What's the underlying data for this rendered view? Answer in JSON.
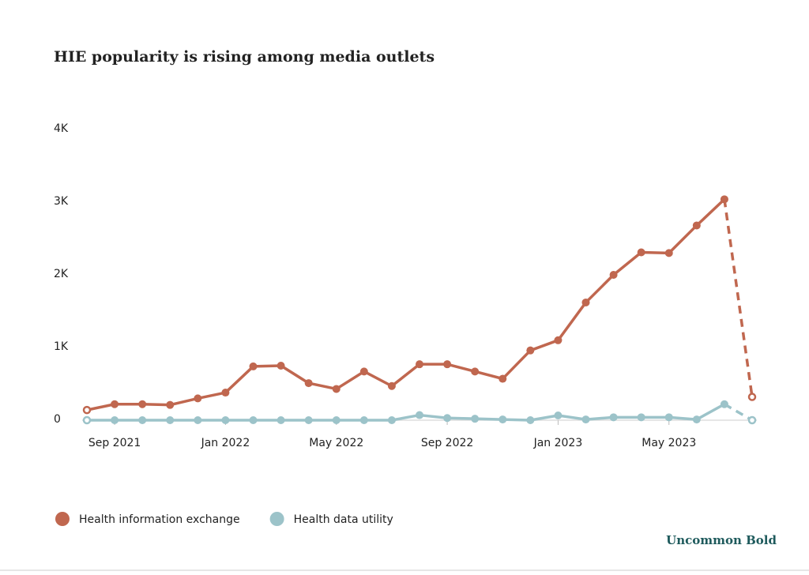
{
  "chart_data": {
    "type": "line",
    "title": "HIE popularity is rising among media outlets",
    "categories": [
      null,
      "Sep 2021",
      null,
      null,
      null,
      "Jan 2022",
      null,
      null,
      null,
      "May 2022",
      null,
      null,
      null,
      "Sep 2022",
      null,
      null,
      null,
      "Jan 2023",
      null,
      null,
      null,
      "May 2023",
      null,
      null,
      null
    ],
    "series": [
      {
        "name": "Health information exchange",
        "color": "#c0674f",
        "values": [
          140,
          220,
          220,
          210,
          300,
          380,
          740,
          750,
          510,
          430,
          670,
          470,
          770,
          770,
          670,
          570,
          960,
          1100,
          1620,
          2000,
          2310,
          2300,
          2680,
          3040,
          320
        ]
      },
      {
        "name": "Health data utility",
        "color": "#9cc3c9",
        "values": [
          0,
          0,
          0,
          0,
          0,
          0,
          0,
          0,
          0,
          0,
          0,
          0,
          70,
          30,
          20,
          10,
          0,
          65,
          10,
          40,
          40,
          40,
          10,
          220,
          0
        ]
      }
    ],
    "ylim": [
      0,
      4000
    ],
    "yticks": [
      0,
      {
        "value": 1000,
        "label": "1K"
      },
      {
        "value": 2000,
        "label": "2K"
      },
      {
        "value": 3000,
        "label": "3K"
      },
      {
        "value": 4000,
        "label": "4K"
      }
    ],
    "legend": "bottom-left",
    "source": "Uncommon Bold"
  }
}
